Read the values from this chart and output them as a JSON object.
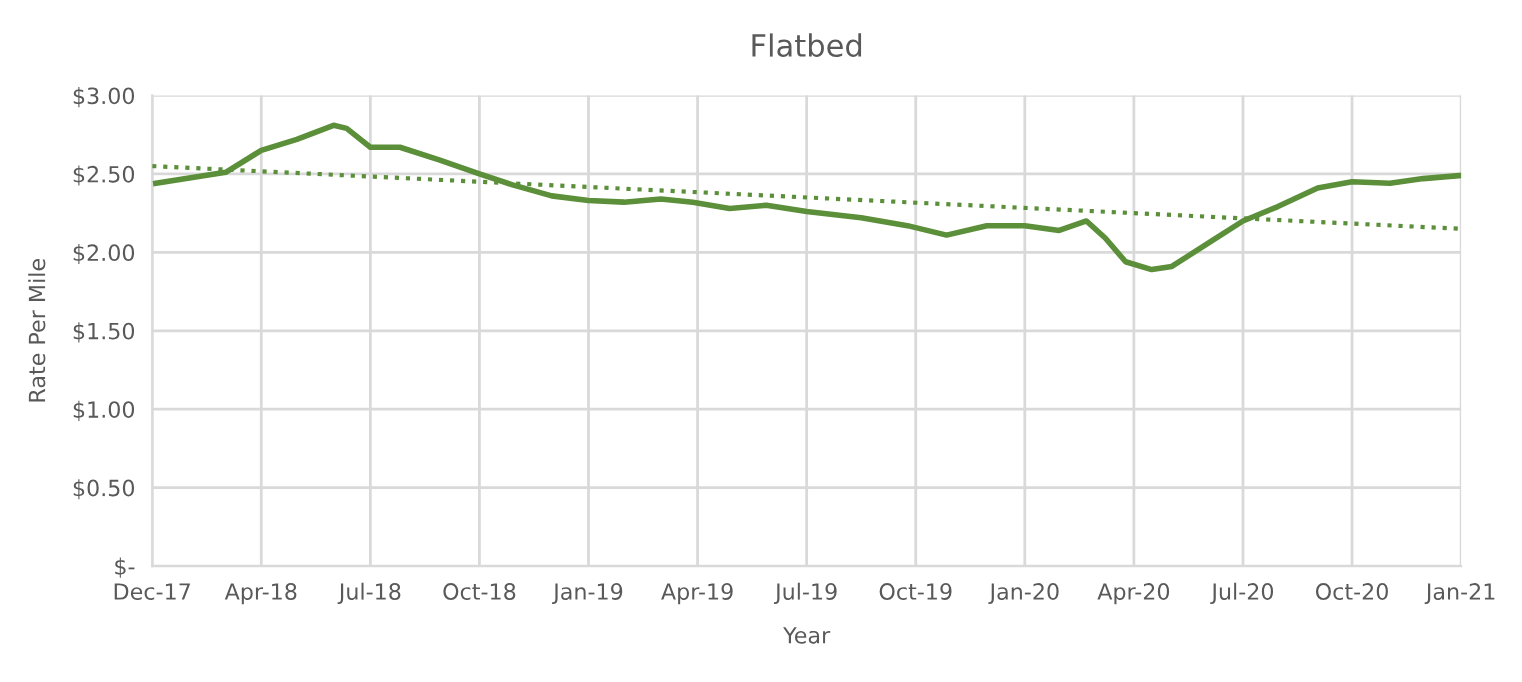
{
  "chart_data": {
    "type": "line",
    "title": "Flatbed",
    "xlabel": "Year",
    "ylabel": "Rate Per Mile",
    "xlim": [
      "2017-12-31",
      "2021-01-08"
    ],
    "xticks": [
      {
        "value": "2017-12-31",
        "label": "Dec-17"
      },
      {
        "value": "2018-04-02",
        "label": "Apr-18"
      },
      {
        "value": "2018-07-03",
        "label": "Jul-18"
      },
      {
        "value": "2018-10-03",
        "label": "Oct-18"
      },
      {
        "value": "2019-01-03",
        "label": "Jan-19"
      },
      {
        "value": "2019-04-05",
        "label": "Apr-19"
      },
      {
        "value": "2019-07-06",
        "label": "Jul-19"
      },
      {
        "value": "2019-10-06",
        "label": "Oct-19"
      },
      {
        "value": "2020-01-06",
        "label": "Jan-20"
      },
      {
        "value": "2020-04-07",
        "label": "Apr-20"
      },
      {
        "value": "2020-07-08",
        "label": "Jul-20"
      },
      {
        "value": "2020-10-08",
        "label": "Oct-20"
      },
      {
        "value": "2021-01-08",
        "label": "Jan-21"
      }
    ],
    "ylim": [
      0,
      3
    ],
    "yticks": [
      {
        "value": 0,
        "label": "$-"
      },
      {
        "value": 0.5,
        "label": "$0.50"
      },
      {
        "value": 1,
        "label": "$1.00"
      },
      {
        "value": 1.5,
        "label": "$1.50"
      },
      {
        "value": 2,
        "label": "$2.00"
      },
      {
        "value": 2.5,
        "label": "$2.50"
      },
      {
        "value": 3,
        "label": "$3.00"
      }
    ],
    "grid": true,
    "marker": "none",
    "series": [
      {
        "color": "#5b8f3a",
        "line_style": "solid",
        "x": [
          "2018-01-03",
          "2018-03-03",
          "2018-04-02",
          "2018-05-02",
          "2018-06-02",
          "2018-06-13",
          "2018-07-03",
          "2018-07-28",
          "2018-08-30",
          "2018-10-03",
          "2018-10-31",
          "2018-12-03",
          "2019-01-03",
          "2019-02-02",
          "2019-03-05",
          "2019-04-01",
          "2019-05-02",
          "2019-06-02",
          "2019-07-06",
          "2019-08-21",
          "2019-09-29",
          "2019-11-01",
          "2019-12-05",
          "2020-01-06",
          "2020-02-04",
          "2020-02-27",
          "2020-03-14",
          "2020-03-31",
          "2020-04-22",
          "2020-05-09",
          "2020-06-11",
          "2020-07-08",
          "2020-08-06",
          "2020-09-09",
          "2020-10-08",
          "2020-11-09",
          "2020-12-07",
          "2021-01-08"
        ],
        "values": [
          2.44,
          2.51,
          2.65,
          2.72,
          2.81,
          2.79,
          2.67,
          2.67,
          2.59,
          2.5,
          2.43,
          2.36,
          2.33,
          2.32,
          2.34,
          2.32,
          2.28,
          2.3,
          2.26,
          2.22,
          2.17,
          2.11,
          2.17,
          2.17,
          2.14,
          2.2,
          2.09,
          1.94,
          1.89,
          1.91,
          2.07,
          2.2,
          2.29,
          2.41,
          2.45,
          2.44,
          2.47,
          2.49
        ]
      },
      {
        "color": "#5b8f3a",
        "line_style": "dotted",
        "x": [
          "2017-12-31",
          "2021-01-08"
        ],
        "values": [
          2.55,
          2.15
        ]
      }
    ]
  }
}
